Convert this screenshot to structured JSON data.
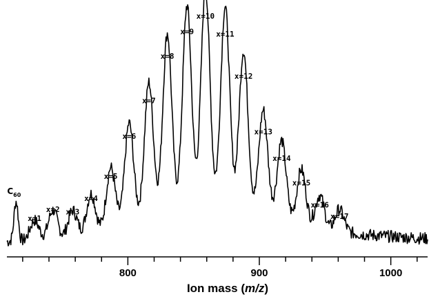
{
  "chart_data": {
    "type": "line",
    "title": "",
    "xlabel": {
      "prefix": "Ion mass (",
      "italic": "m/z",
      "suffix": ")"
    },
    "ylabel": "",
    "xlim": [
      708,
      1028
    ],
    "ylim": [
      0,
      100
    ],
    "x_ticks": [
      800,
      900,
      1000
    ],
    "grid": false,
    "legend": "none",
    "line_color": "#000000",
    "c60_label": {
      "main": "C",
      "sub": "60"
    },
    "peaks": [
      {
        "label": "C60",
        "x": 715,
        "y": 18
      },
      {
        "label": "x=1",
        "x": 729,
        "y": 9
      },
      {
        "label": "x=2",
        "x": 743,
        "y": 13
      },
      {
        "label": "x=3",
        "x": 758,
        "y": 12
      },
      {
        "label": "x=4",
        "x": 772,
        "y": 18
      },
      {
        "label": "x=5",
        "x": 787,
        "y": 28
      },
      {
        "label": "x=6",
        "x": 801,
        "y": 46
      },
      {
        "label": "x=7",
        "x": 816,
        "y": 62
      },
      {
        "label": "x=8",
        "x": 830,
        "y": 82
      },
      {
        "label": "x=9",
        "x": 845,
        "y": 93
      },
      {
        "label": "x=10",
        "x": 859,
        "y": 100
      },
      {
        "label": "x=11",
        "x": 874,
        "y": 92
      },
      {
        "label": "x=12",
        "x": 888,
        "y": 73
      },
      {
        "label": "x=13",
        "x": 903,
        "y": 48
      },
      {
        "label": "x=14",
        "x": 917,
        "y": 36
      },
      {
        "label": "x=15",
        "x": 932,
        "y": 25
      },
      {
        "label": "x=16",
        "x": 946,
        "y": 15
      },
      {
        "label": "x=17",
        "x": 961,
        "y": 10
      }
    ]
  }
}
